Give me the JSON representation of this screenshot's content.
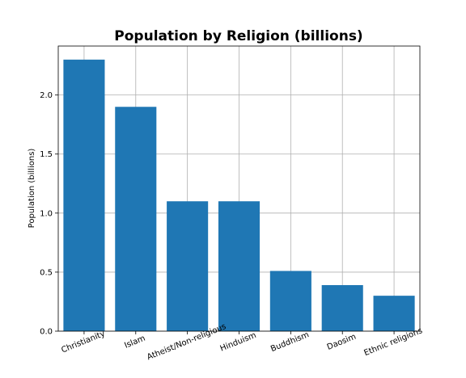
{
  "chart_data": {
    "type": "bar",
    "title": "Population by Religion (billions)",
    "xlabel": "",
    "ylabel": "Population (billions)",
    "categories": [
      "Christianity",
      "Islam",
      "Atheist/Non-religious",
      "Hinduism",
      "Buddhism",
      "Daosim",
      "Ethnic religions"
    ],
    "values": [
      2.3,
      1.9,
      1.1,
      1.1,
      0.51,
      0.39,
      0.3
    ],
    "ylim": [
      0,
      2.415
    ],
    "yticks": [
      "0.0",
      "0.5",
      "1.0",
      "1.5",
      "2.0"
    ],
    "grid": true,
    "bar_color": "#1f77b4",
    "xtick_rotation": -22
  }
}
